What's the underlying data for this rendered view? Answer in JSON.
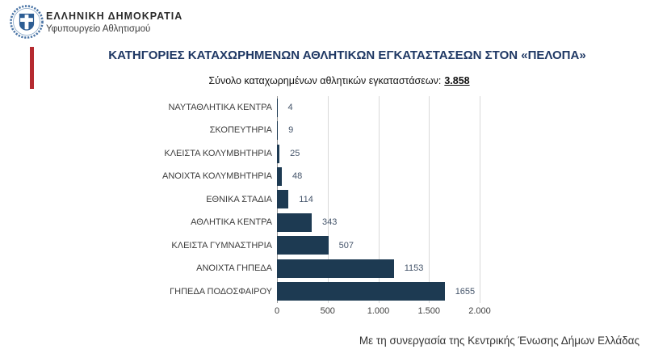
{
  "header": {
    "org_line1": "ΕΛΛΗΝΙΚΗ ΔΗΜΟΚΡΑΤΙΑ",
    "org_line2": "Υφυπουργείο Αθλητισμού"
  },
  "title": "ΚΑΤΗΓΟΡΙΕΣ ΚΑΤΑΧΩΡΗΜΕΝΩΝ ΑΘΛΗΤΙΚΩΝ ΕΓΚΑΤΑΣΤΑΣΕΩΝ ΣΤΟΝ «ΠΕΛΟΠΑ»",
  "subtitle": {
    "label": "Σύνολο καταχωρημένων αθλητικών εγκαταστάσεων:",
    "value": "3.858"
  },
  "footer": "Με τη συνεργασία της Κεντρικής Ένωσης Δήμων Ελλάδας",
  "colors": {
    "bar": "#1d3a52",
    "value_label": "#44546a",
    "title": "#1f3864",
    "accent_red": "#b52a30",
    "logo_blue": "#2e5e94",
    "gridline": "#d9d9d9"
  },
  "chart_data": {
    "type": "bar",
    "orientation": "horizontal",
    "title": "ΚΑΤΗΓΟΡΙΕΣ ΚΑΤΑΧΩΡΗΜΕΝΩΝ ΑΘΛΗΤΙΚΩΝ ΕΓΚΑΤΑΣΤΑΣΕΩΝ ΣΤΟΝ «ΠΕΛΟΠΑ»",
    "total": 3858,
    "categories": [
      "ΝΑΥΤΑΘΛΗΤΙΚΑ ΚΕΝΤΡΑ",
      "ΣΚΟΠΕΥΤΗΡΙΑ",
      "ΚΛΕΙΣΤΑ ΚΟΛΥΜΒΗΤΗΡΙΑ",
      "ΑΝΟΙΧΤΑ ΚΟΛΥΜΒΗΤΗΡΙΑ",
      "ΕΘΝΙΚΑ ΣΤΑΔΙΑ",
      "ΑΘΛΗΤΙΚΑ ΚΕΝΤΡΑ",
      "ΚΛΕΙΣΤΑ ΓΥΜΝΑΣΤΗΡΙΑ",
      "ΑΝΟΙΧΤΑ ΓΗΠΕΔΑ",
      "ΓΗΠΕΔΑ ΠΟΔΟΣΦΑΙΡΟΥ"
    ],
    "values": [
      4,
      9,
      25,
      48,
      114,
      343,
      507,
      1153,
      1655
    ],
    "value_labels": [
      "4",
      "9",
      "25",
      "48",
      "114",
      "343",
      "507",
      "1153",
      "1655"
    ],
    "x_ticks": [
      "0",
      "500",
      "1.000",
      "1.500",
      "2.000"
    ],
    "x_tick_values": [
      0,
      500,
      1000,
      1500,
      2000
    ],
    "xlim": [
      0,
      2000
    ],
    "grid": "vertical",
    "legend": "none"
  }
}
